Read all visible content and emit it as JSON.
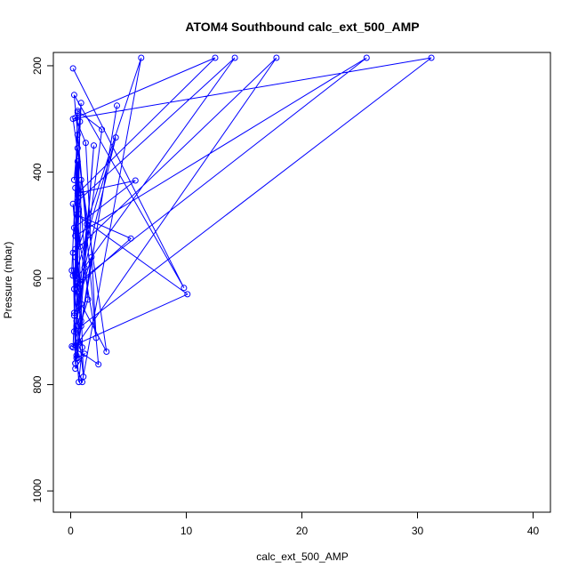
{
  "chart_data": {
    "type": "line",
    "title": "ATOM4 Southbound calc_ext_500_AMP",
    "xlabel": "calc_ext_500_AMP",
    "ylabel": "Pressure (mbar)",
    "xlim": [
      -1.5,
      41.5
    ],
    "ylim": [
      1040,
      175
    ],
    "y_reversed": true,
    "grid": false,
    "legend": "none",
    "xticks": [
      0,
      10,
      20,
      30,
      40
    ],
    "yticks": [
      200,
      400,
      600,
      800,
      1000
    ],
    "series": [
      {
        "color": "#0000ff",
        "marker": "open-circle",
        "x": [
          0.2,
          9.8,
          0.3,
          2.4,
          0.1,
          10.1,
          0.5,
          5.2,
          0.8,
          0.2,
          2.2,
          1.3,
          0.4,
          12.5,
          0.6,
          5.6,
          0.3,
          0.9,
          3.1,
          0.2,
          31.2,
          0.9,
          0.4,
          6.1,
          1.0,
          0.4,
          0.2,
          17.8,
          0.7,
          4.0,
          0.5,
          1.8,
          0.3,
          0.6,
          0.1,
          0.9,
          0.5,
          1.2,
          0.4,
          2.0,
          0.6,
          0.3,
          0.7,
          1.0,
          0.5,
          2.7,
          0.6,
          0.4,
          0.8,
          0.9,
          0.3,
          1.1,
          0.6,
          14.2,
          0.5,
          0.3,
          0.4,
          0.7,
          0.2,
          1.5,
          0.8,
          0.6,
          0.4,
          3.9,
          1.2,
          0.7,
          0.5,
          25.6,
          0.4,
          0.9,
          0.3,
          0.6,
          1.4,
          0.5,
          0.8,
          0.3,
          0.6,
          0.4,
          0.7,
          0.2
        ],
        "y": [
          205,
          618,
          255,
          762,
          728,
          630,
          480,
          525,
          610,
          460,
          712,
          345,
          298,
          185,
          440,
          416,
          505,
          648,
          738,
          300,
          185,
          690,
          560,
          185,
          795,
          760,
          552,
          185,
          720,
          275,
          745,
          560,
          670,
          330,
          585,
          680,
          750,
          742,
          770,
          350,
          750,
          665,
          795,
          730,
          690,
          320,
          285,
          430,
          540,
          415,
          620,
          785,
          455,
          185,
          600,
          585,
          760,
          470,
          730,
          640,
          440,
          380,
          595,
          335,
          580,
          660,
          610,
          185,
          520,
          270,
          415,
          355,
          498,
          680,
          305,
          700,
          288,
          545,
          625,
          595
        ]
      }
    ]
  }
}
